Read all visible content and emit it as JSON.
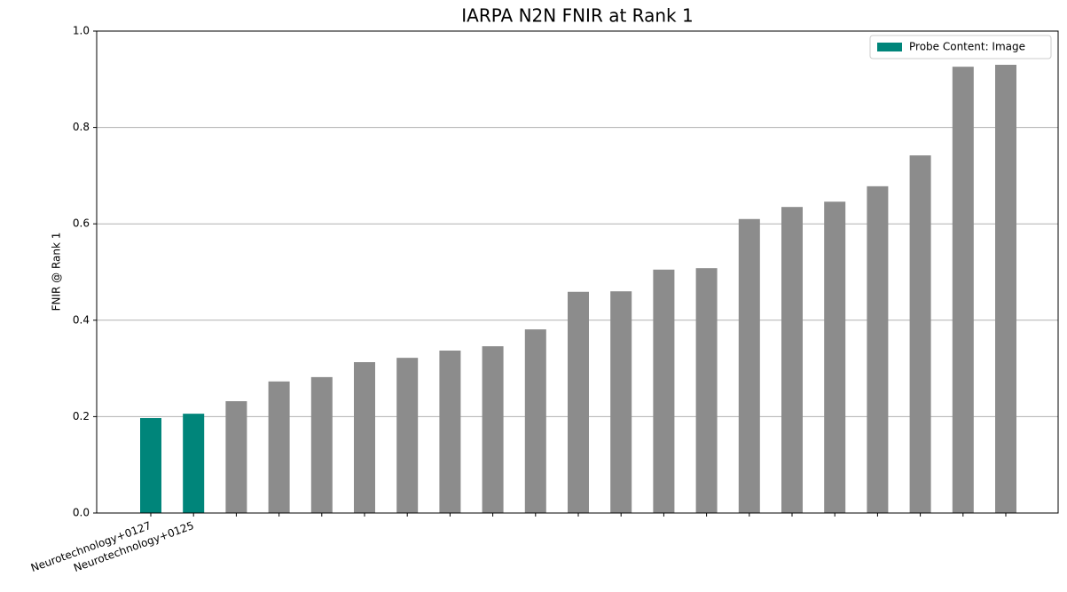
{
  "chart_data": {
    "type": "bar",
    "title": "IARPA N2N FNIR at Rank 1",
    "y_label": "FNIR @ Rank 1",
    "categories": [
      "Neurotechnology+0127",
      "Neurotechnology+0125",
      null,
      null,
      null,
      null,
      null,
      null,
      null,
      null,
      null,
      null,
      null,
      null,
      null,
      null,
      null,
      null,
      null,
      null,
      null
    ],
    "values": [
      0.197,
      0.206,
      0.232,
      0.273,
      0.282,
      0.313,
      0.322,
      0.337,
      0.346,
      0.381,
      0.459,
      0.46,
      0.505,
      0.508,
      0.61,
      0.635,
      0.646,
      0.678,
      0.742,
      0.926,
      0.93
    ],
    "colors": [
      "#00857a",
      "#00857a",
      "#8c8c8c",
      "#8c8c8c",
      "#8c8c8c",
      "#8c8c8c",
      "#8c8c8c",
      "#8c8c8c",
      "#8c8c8c",
      "#8c8c8c",
      "#8c8c8c",
      "#8c8c8c",
      "#8c8c8c",
      "#8c8c8c",
      "#8c8c8c",
      "#8c8c8c",
      "#8c8c8c",
      "#8c8c8c",
      "#8c8c8c",
      "#8c8c8c",
      "#8c8c8c"
    ],
    "legend": [
      {
        "label": "Probe Content: Image",
        "color": "#00857a"
      }
    ],
    "legend_position": "upper right",
    "ylim": [
      0,
      1
    ],
    "yticks": [
      {
        "value": 0,
        "label": "0.0"
      },
      0.2,
      0.4,
      0.6,
      0.8,
      {
        "value": 1,
        "label": "1.0"
      }
    ],
    "grid": true
  }
}
